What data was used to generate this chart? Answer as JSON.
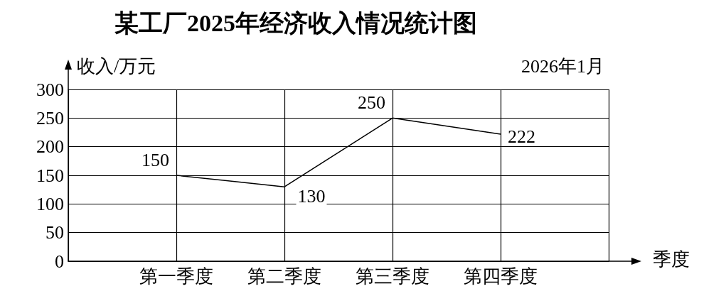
{
  "chart_data": {
    "type": "line",
    "title": "某工厂2025年经济收入情况统计图",
    "xlabel": "季度",
    "ylabel": "收入/万元",
    "annotations": [
      "2026年1月"
    ],
    "categories": [
      "第一季度",
      "第二季度",
      "第三季度",
      "第四季度"
    ],
    "series": [
      {
        "color": "#000000",
        "values": [
          150,
          130,
          250,
          222
        ]
      }
    ],
    "ylim": [
      0,
      300
    ],
    "yticks": [
      0,
      50,
      100,
      150,
      200,
      250,
      300
    ],
    "grid": true,
    "marker": "none",
    "data_labels": true
  }
}
